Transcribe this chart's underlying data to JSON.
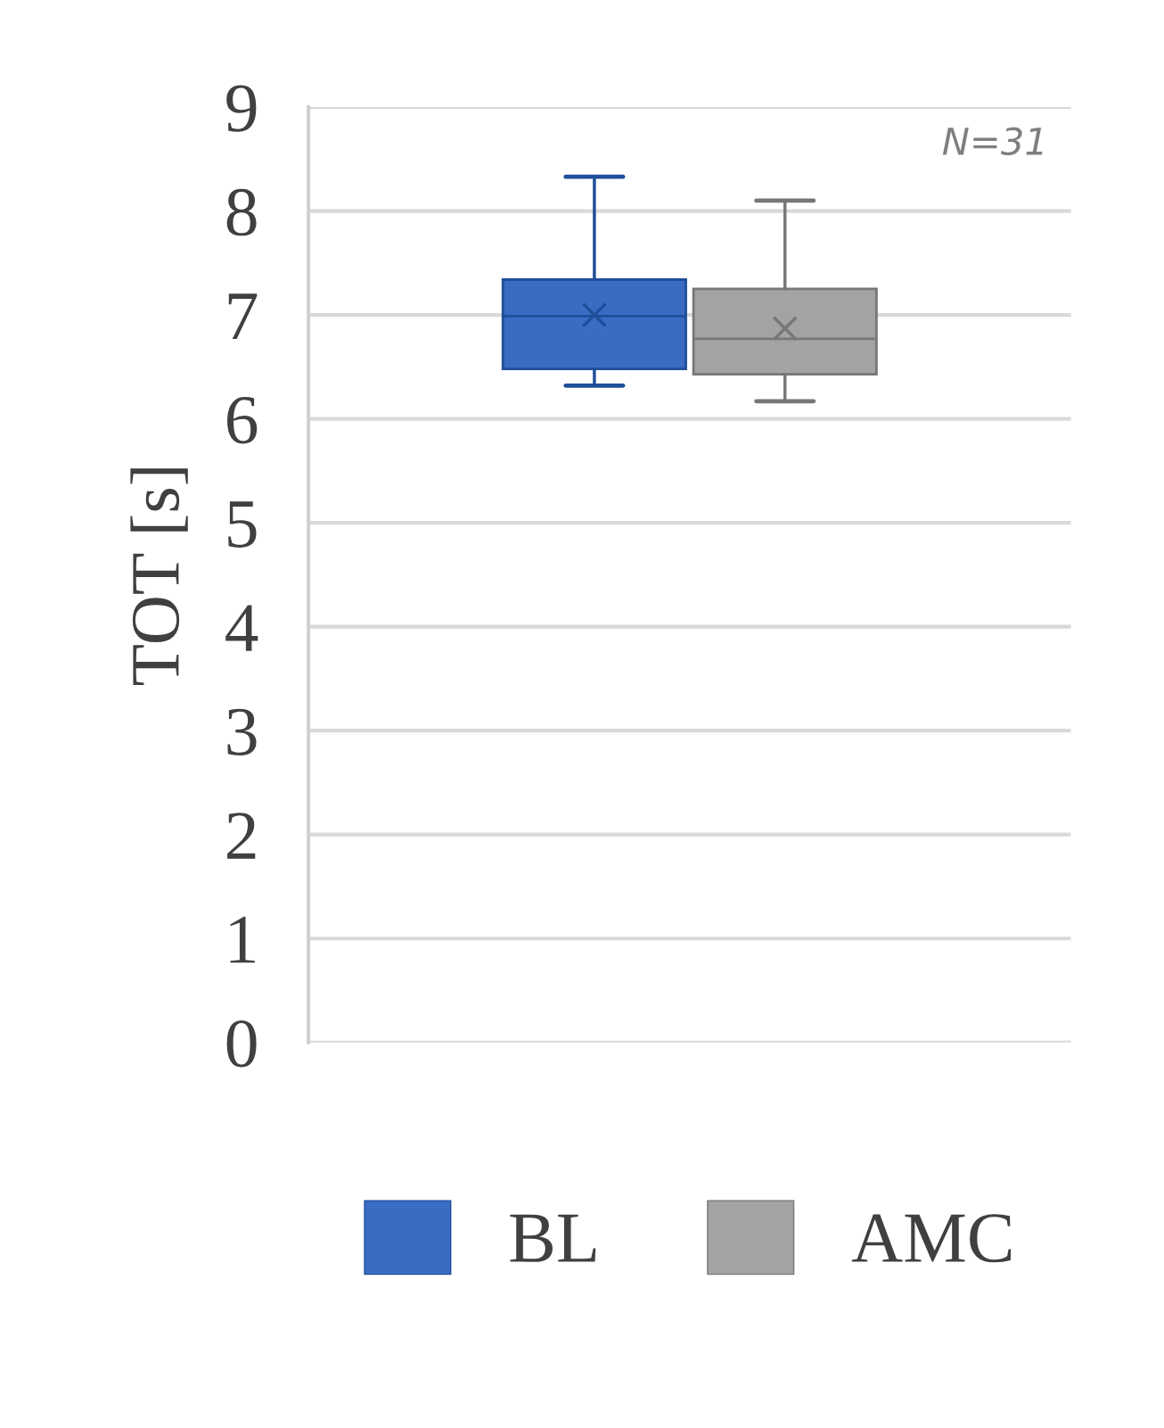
{
  "chart_data": {
    "type": "box",
    "ylabel": "TOT [s]",
    "categories": [
      null
    ],
    "series": [
      {
        "name": "BL",
        "color": "#3a6cc4",
        "boxes": [
          {
            "low": 6.32,
            "q1": 6.48,
            "median": 6.99,
            "q3": 7.34,
            "high": 8.33,
            "mean": 7.0
          }
        ]
      },
      {
        "name": "AMC",
        "color": "#a3a3a3",
        "boxes": [
          {
            "low": 6.17,
            "q1": 6.43,
            "median": 6.77,
            "q3": 7.25,
            "high": 8.1,
            "mean": 6.87
          }
        ]
      }
    ],
    "ylim": [
      0,
      9
    ],
    "yticks": [
      0,
      1,
      2,
      3,
      4,
      5,
      6,
      7,
      8,
      9
    ],
    "grid": "y",
    "legend": "bottom",
    "marker": "cross",
    "annotations": [
      "N=31"
    ]
  }
}
